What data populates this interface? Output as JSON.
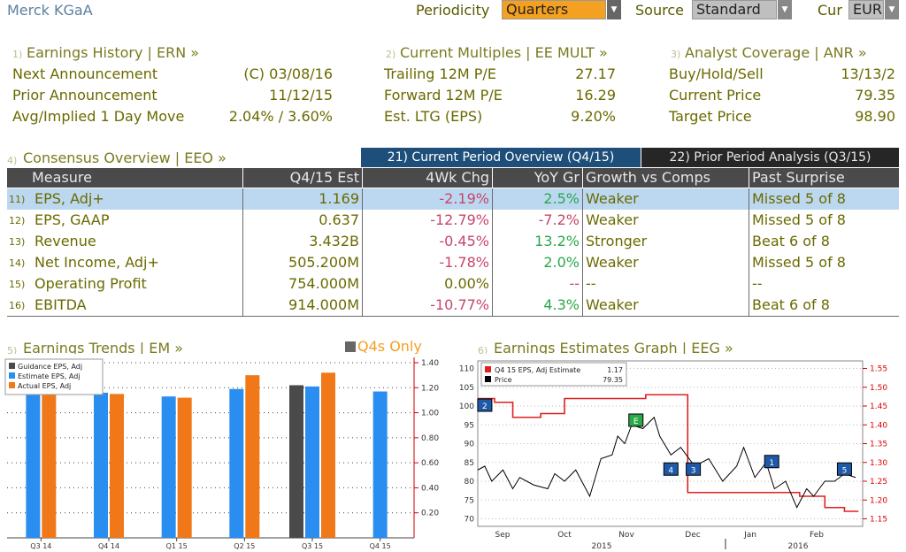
{
  "header": {
    "company": "Merck KGaA",
    "periodicity_label": "Periodicity",
    "periodicity_value": "Quarters",
    "source_label": "Source",
    "source_value": "Standard",
    "cur_label": "Cur",
    "cur_value": "EUR"
  },
  "earnings_history": {
    "num": "1)",
    "title": "Earnings History | ERN »",
    "rows": [
      {
        "label": "Next Announcement",
        "value": "(C)  03/08/16"
      },
      {
        "label": "Prior Announcement",
        "value": "11/12/15"
      },
      {
        "label": "Avg/Implied 1 Day Move",
        "value": "2.04% / 3.60%"
      }
    ]
  },
  "current_multiples": {
    "num": "2)",
    "title": "Current Multiples | EE MULT »",
    "rows": [
      {
        "label": "Trailing 12M P/E",
        "value": "27.17"
      },
      {
        "label": "Forward 12M P/E",
        "value": "16.29"
      },
      {
        "label": "Est. LTG (EPS)",
        "value": "9.20%"
      }
    ]
  },
  "analyst_coverage": {
    "num": "3)",
    "title": "Analyst Coverage | ANR »",
    "rows": [
      {
        "label": "Buy/Hold/Sell",
        "value": "13/13/2"
      },
      {
        "label": "Current Price",
        "value": "79.35"
      },
      {
        "label": "Target Price",
        "value": "98.90"
      }
    ]
  },
  "consensus": {
    "num": "4)",
    "title": "Consensus Overview | EEO »",
    "tab_current": "21) Current Period Overview (Q4/15)",
    "tab_prior": "22) Prior Period Analysis (Q3/15)",
    "headers": [
      "Measure",
      "Q4/15 Est",
      "4Wk Chg",
      "YoY Gr",
      "Growth vs Comps",
      "Past Surprise"
    ],
    "rows": [
      {
        "num": "11)",
        "measure": "EPS, Adj+",
        "est": "1.169",
        "chg": "-2.19%",
        "yoy": "2.5%",
        "growth": "Weaker",
        "surprise": "Missed 5 of 8"
      },
      {
        "num": "12)",
        "measure": "EPS, GAAP",
        "est": "0.637",
        "chg": "-12.79%",
        "yoy": "-7.2%",
        "growth": "Weaker",
        "surprise": "Missed 5 of 8"
      },
      {
        "num": "13)",
        "measure": "Revenue",
        "est": "3.432B",
        "chg": "-0.45%",
        "yoy": "13.2%",
        "growth": "Stronger",
        "surprise": "Beat 6 of 8"
      },
      {
        "num": "14)",
        "measure": "Net Income, Adj+",
        "est": "505.200M",
        "chg": "-1.78%",
        "yoy": "2.0%",
        "growth": "Weaker",
        "surprise": "Missed 5 of 8"
      },
      {
        "num": "15)",
        "measure": "Operating Profit",
        "est": "754.000M",
        "chg": "0.00%",
        "yoy": "--",
        "growth": "--",
        "surprise": "--"
      },
      {
        "num": "16)",
        "measure": "EBITDA",
        "est": "914.000M",
        "chg": "-10.77%",
        "yoy": "4.3%",
        "growth": "Weaker",
        "surprise": "Beat 6 of 8"
      }
    ]
  },
  "trends": {
    "num": "5)",
    "title": "Earnings Trends | EM »",
    "q4s_only": "Q4s Only"
  },
  "estimates_graph": {
    "num": "6)",
    "title": "Earnings Estimates Graph | EEG »",
    "legend_est": "Q4 15 EPS, Adj Estimate",
    "legend_est_val": "1.17",
    "legend_price": "Price",
    "legend_price_val": "79.35"
  },
  "colors": {
    "guidance": "#4a4a4a",
    "estimate": "#2a8ef0",
    "actual": "#f07818",
    "price": "#000000",
    "est_line": "#e02020",
    "accent": "#f4a020"
  },
  "chart_data": [
    {
      "type": "bar",
      "categories": [
        "Q3 14",
        "Q4 14",
        "Q1 15",
        "Q2 15",
        "Q3 15",
        "Q4 15"
      ],
      "series": [
        {
          "name": "Guidance EPS, Adj",
          "values": [
            null,
            null,
            null,
            null,
            1.22,
            null
          ]
        },
        {
          "name": "Estimate EPS, Adj",
          "values": [
            1.2,
            1.16,
            1.13,
            1.19,
            1.21,
            1.17
          ]
        },
        {
          "name": "Actual EPS, Adj",
          "values": [
            1.2,
            1.15,
            1.12,
            1.3,
            1.32,
            null
          ]
        }
      ],
      "ylim": [
        0,
        1.4
      ],
      "yticks": [
        "0.20",
        "0.40",
        "0.60",
        "0.80",
        "1.00",
        "1.20",
        "1.40"
      ],
      "legend": "top-left",
      "grid": true
    },
    {
      "type": "line",
      "x_ticks": [
        "Sep",
        "Oct",
        "Nov",
        "Dec",
        "Jan",
        "Feb"
      ],
      "x_years": [
        "2015",
        "2016"
      ],
      "series": [
        {
          "name": "Q4 15 EPS, Adj Estimate",
          "axis": "right",
          "x": [
            0,
            8,
            12,
            18,
            25,
            40,
            45,
            58,
            62,
            100,
            120,
            130,
            150,
            168,
            200,
            230,
            235,
            245,
            248,
            252,
            262,
            268,
            272
          ],
          "values": [
            1.47,
            1.47,
            1.46,
            1.46,
            1.42,
            1.42,
            1.43,
            1.43,
            1.47,
            1.47,
            1.48,
            1.48,
            1.22,
            1.22,
            1.22,
            1.21,
            1.21,
            1.21,
            1.18,
            1.18,
            1.17,
            1.17,
            1.17
          ]
        },
        {
          "name": "Price",
          "axis": "left",
          "x": [
            0,
            5,
            10,
            18,
            25,
            30,
            40,
            50,
            55,
            62,
            70,
            80,
            88,
            96,
            100,
            105,
            110,
            118,
            126,
            130,
            138,
            145,
            155,
            165,
            175,
            185,
            190,
            198,
            206,
            212,
            220,
            228,
            235,
            240,
            248,
            255,
            262,
            270
          ],
          "values": [
            83,
            84,
            80,
            83,
            78,
            81,
            79,
            78,
            82,
            80,
            83,
            76,
            86,
            87,
            92,
            90,
            95,
            94,
            97,
            92,
            87,
            89,
            84,
            86,
            80,
            84,
            89,
            81,
            85,
            78,
            80,
            73,
            78,
            76,
            80,
            80,
            82,
            81
          ]
        }
      ],
      "y_left": [
        70,
        75,
        80,
        85,
        90,
        95,
        100,
        105,
        110
      ],
      "y_right": [
        "1.15",
        "1.20",
        "1.25",
        "1.30",
        "1.35",
        "1.40",
        "1.45",
        "1.50",
        "1.55"
      ],
      "events": [
        {
          "label": "2",
          "x": 5,
          "v": 100
        },
        {
          "label": "E",
          "x": 113,
          "v": 96
        },
        {
          "label": "4",
          "x": 138,
          "v": 83
        },
        {
          "label": "3",
          "x": 154,
          "v": 83
        },
        {
          "label": "1",
          "x": 210,
          "v": 85
        },
        {
          "label": "5",
          "x": 262,
          "v": 83
        }
      ]
    }
  ]
}
